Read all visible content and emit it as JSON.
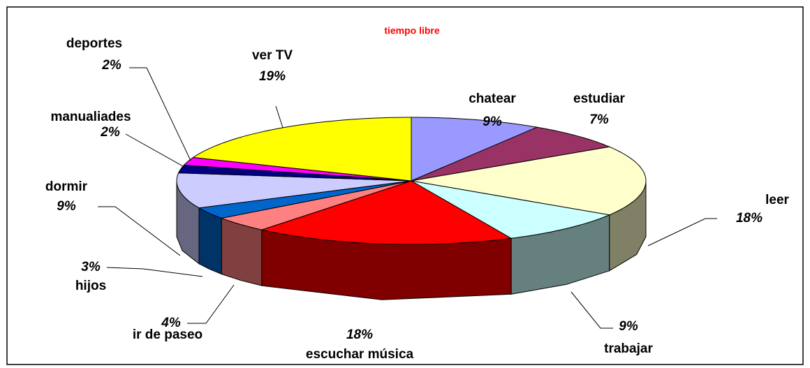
{
  "chart_data": {
    "type": "pie",
    "title": "tiempo libre",
    "categories": [
      "chatear",
      "estudiar",
      "leer",
      "trabajar",
      "escuchar música",
      "ir de paseo",
      "hijos",
      "dormir",
      "manualiades",
      "deportes",
      "ver TV"
    ],
    "values": [
      9,
      7,
      18,
      9,
      18,
      4,
      3,
      9,
      2,
      2,
      19
    ],
    "value_labels": [
      "9%",
      "7%",
      "18%",
      "9%",
      "18%",
      "4%",
      "3%",
      "9%",
      "2%",
      "2%",
      "19%"
    ],
    "colors": [
      "#9999ff",
      "#993366",
      "#ffffcc",
      "#ccffff",
      "#ff0000",
      "#ff8080",
      "#0066cc",
      "#ccccff",
      "#000080",
      "#ff00ff",
      "#ffff00"
    ]
  }
}
